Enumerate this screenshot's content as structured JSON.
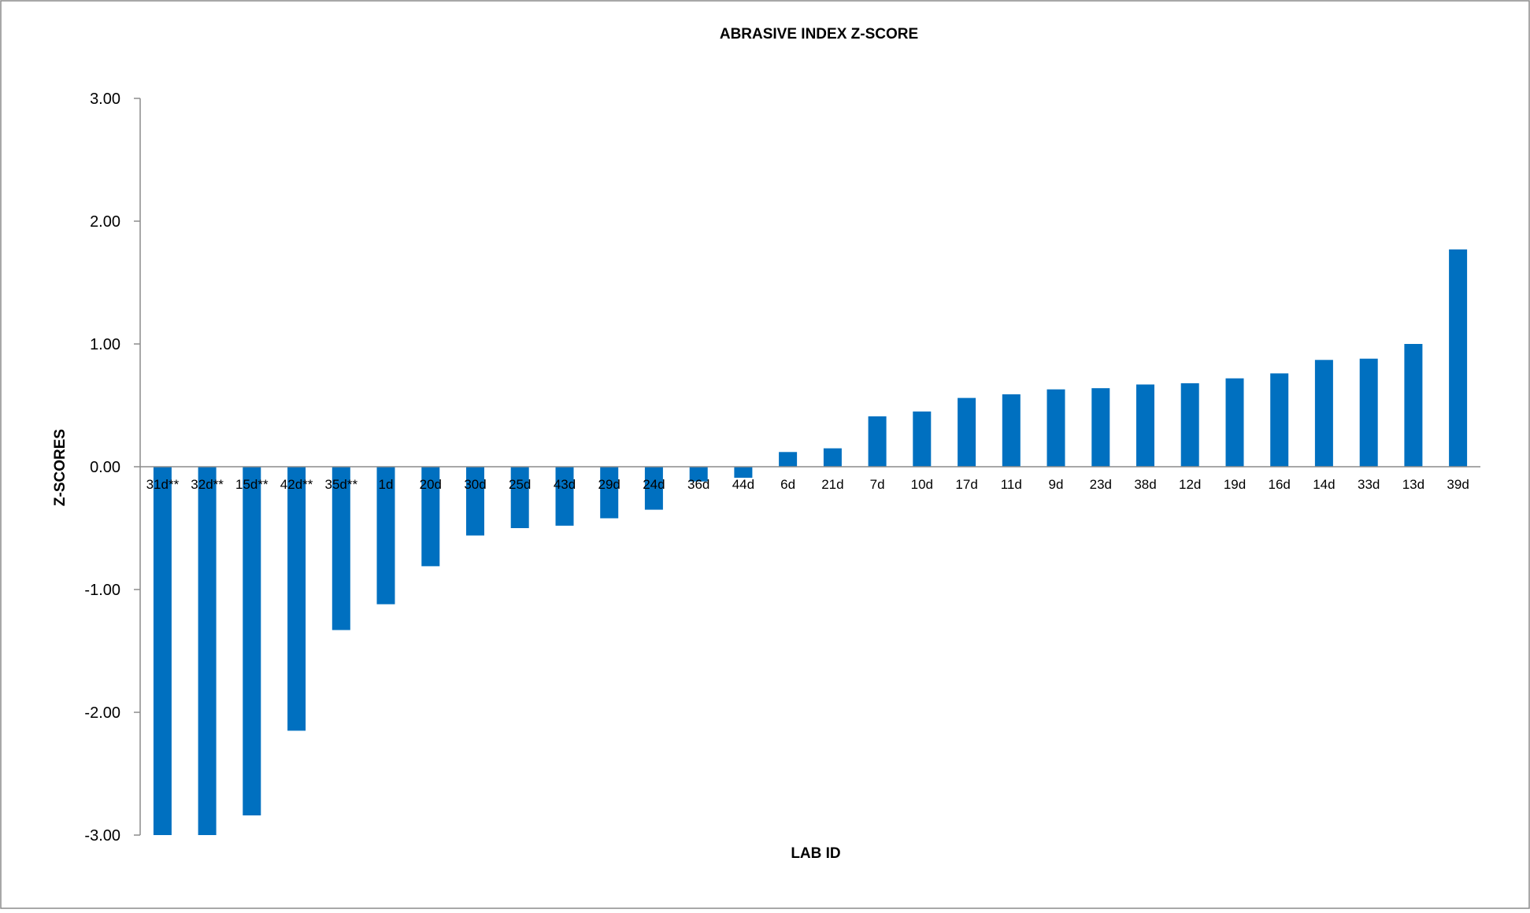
{
  "chart_data": {
    "type": "bar",
    "title": "ABRASIVE INDEX Z-SCORE",
    "xlabel": "LAB ID",
    "ylabel": "Z-SCORES",
    "ylim": [
      -3,
      3
    ],
    "yticks": [
      "3.00",
      "2.00",
      "1.00",
      "0.00",
      "-1.00",
      "-2.00",
      "-3.00"
    ],
    "ytick_values": [
      3,
      2,
      1,
      0,
      -1,
      -2,
      -3
    ],
    "grid": false,
    "legend": "none",
    "bar_color": "#0070C0",
    "categories": [
      "31d**",
      "32d**",
      "15d**",
      "42d**",
      "35d**",
      "1d",
      "20d",
      "30d",
      "25d",
      "43d",
      "29d",
      "24d",
      "36d",
      "44d",
      "6d",
      "21d",
      "7d",
      "10d",
      "17d",
      "11d",
      "9d",
      "23d",
      "38d",
      "12d",
      "19d",
      "16d",
      "14d",
      "33d",
      "13d",
      "39d"
    ],
    "values": [
      -3.0,
      -3.0,
      -2.84,
      -2.15,
      -1.33,
      -1.12,
      -0.81,
      -0.56,
      -0.5,
      -0.48,
      -0.42,
      -0.35,
      -0.12,
      -0.09,
      0.12,
      0.15,
      0.41,
      0.45,
      0.56,
      0.59,
      0.63,
      0.64,
      0.67,
      0.68,
      0.72,
      0.76,
      0.87,
      0.88,
      1.0,
      1.77
    ]
  }
}
